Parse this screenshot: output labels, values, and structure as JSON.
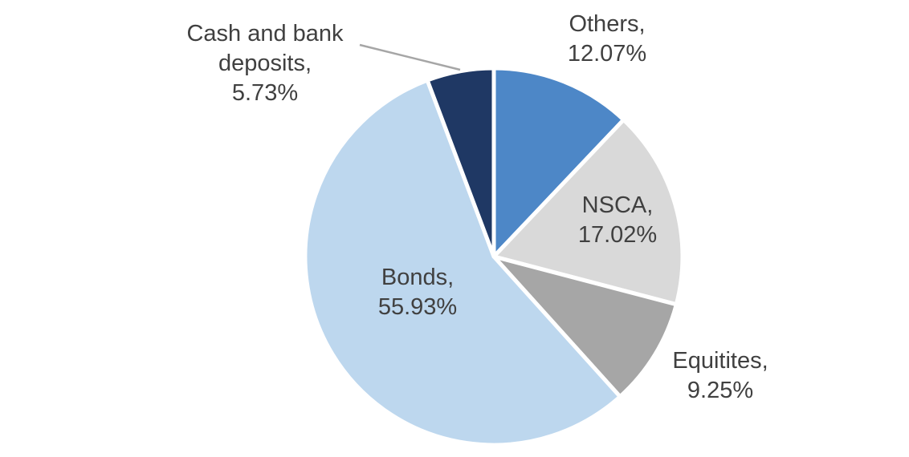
{
  "chart_data": {
    "type": "pie",
    "title": "",
    "total": 100,
    "start_angle_deg": 0,
    "direction": "clockwise",
    "slice_border_color": "#ffffff",
    "label_color": "#404040",
    "leader_line_color": "#a6a6a6",
    "slices": [
      {
        "id": "others",
        "name": "Others",
        "value": 12.07,
        "color": "#4d87c7"
      },
      {
        "id": "nsca",
        "name": "NSCA",
        "value": 17.02,
        "color": "#d9d9d9"
      },
      {
        "id": "equitites",
        "name": "Equitites",
        "value": 9.25,
        "color": "#a6a6a6"
      },
      {
        "id": "bonds",
        "name": "Bonds",
        "value": 55.93,
        "color": "#bdd7ee"
      },
      {
        "id": "cash",
        "name": "Cash and bank deposits",
        "value": 5.73,
        "color": "#1f3864"
      }
    ]
  },
  "labels": {
    "others": [
      "Others,",
      "12.07%"
    ],
    "nsca": [
      "NSCA,",
      "17.02%"
    ],
    "equitites": [
      "Equitites,",
      "9.25%"
    ],
    "bonds": [
      "Bonds,",
      "55.93%"
    ],
    "cash": [
      "Cash and bank",
      "deposits,",
      "5.73%"
    ]
  }
}
